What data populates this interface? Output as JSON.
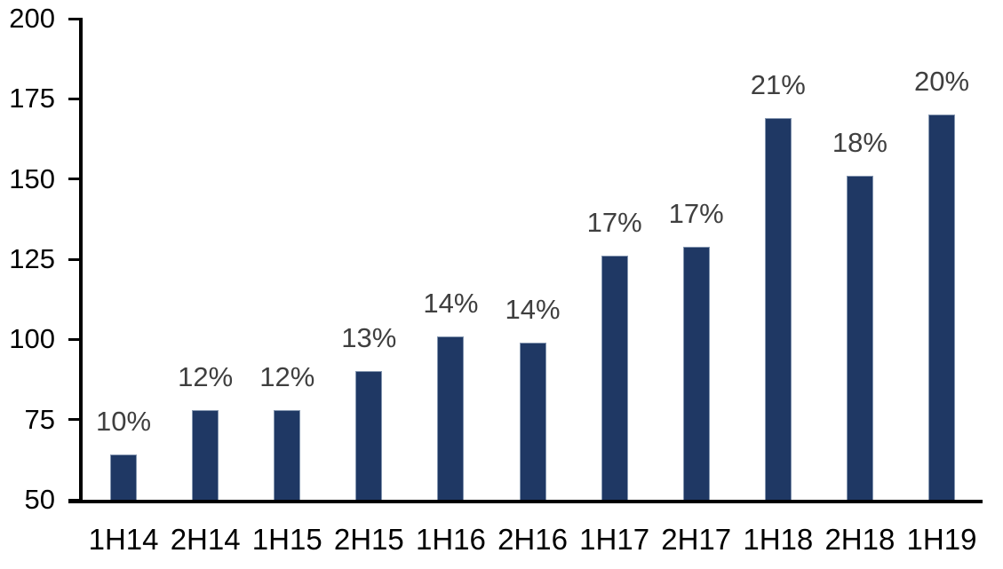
{
  "chart_data": {
    "type": "bar",
    "title": "",
    "xlabel": "",
    "ylabel": "",
    "categories": [
      "1H14",
      "2H14",
      "1H15",
      "2H15",
      "1H16",
      "2H16",
      "1H17",
      "2H17",
      "1H18",
      "2H18",
      "1H19"
    ],
    "values": [
      64,
      78,
      78,
      90,
      101,
      99,
      126,
      129,
      169,
      151,
      170
    ],
    "bar_labels": [
      "10%",
      "12%",
      "12%",
      "13%",
      "14%",
      "14%",
      "17%",
      "17%",
      "21%",
      "18%",
      "20%"
    ],
    "ylim": [
      50,
      200
    ],
    "yticks": [
      200,
      175,
      150,
      125,
      100,
      75,
      50
    ],
    "grid": false,
    "legend": false,
    "colors": {
      "bar_fill": "#1F3864",
      "bar_border": "#8496B0",
      "data_label": "#3F3F3F",
      "axis_text": "#000000",
      "axis_line": "#000000",
      "background": "#FFFFFF"
    }
  }
}
